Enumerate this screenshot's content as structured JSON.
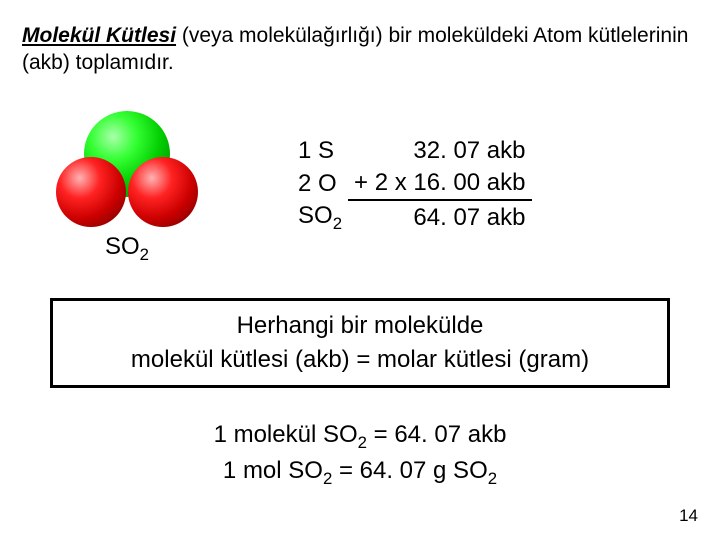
{
  "definition": {
    "term": "Molekül Kütlesi",
    "rest": " (veya molekülağırlığı) bir moleküldeki Atom kütlelerinin (akb) toplamıdır."
  },
  "molecule": {
    "label_formula": "SO",
    "label_sub": "2",
    "image": {
      "central_color": "#00cc00",
      "outer_color": "#cc0000",
      "alt": "SO2 molecule 3D"
    }
  },
  "calc": {
    "rows": [
      {
        "label": "1 S",
        "value": "32. 07 akb"
      },
      {
        "label": "2 O",
        "value": "+ 2 x 16. 00 akb"
      }
    ],
    "result_label_formula": "SO",
    "result_label_sub": "2",
    "result_value": "64. 07 akb"
  },
  "box": {
    "line1": "Herhangi bir molekülde",
    "line2": "molekül kütlesi (akb) = molar kütlesi (gram)"
  },
  "equations": {
    "line1_pre": "1 molekül SO",
    "line1_sub": "2",
    "line1_post": " = 64. 07 akb",
    "line2_pre": "1 mol SO",
    "line2_sub1": "2",
    "line2_mid": " = 64. 07 g SO",
    "line2_sub2": "2"
  },
  "page_number": "14"
}
